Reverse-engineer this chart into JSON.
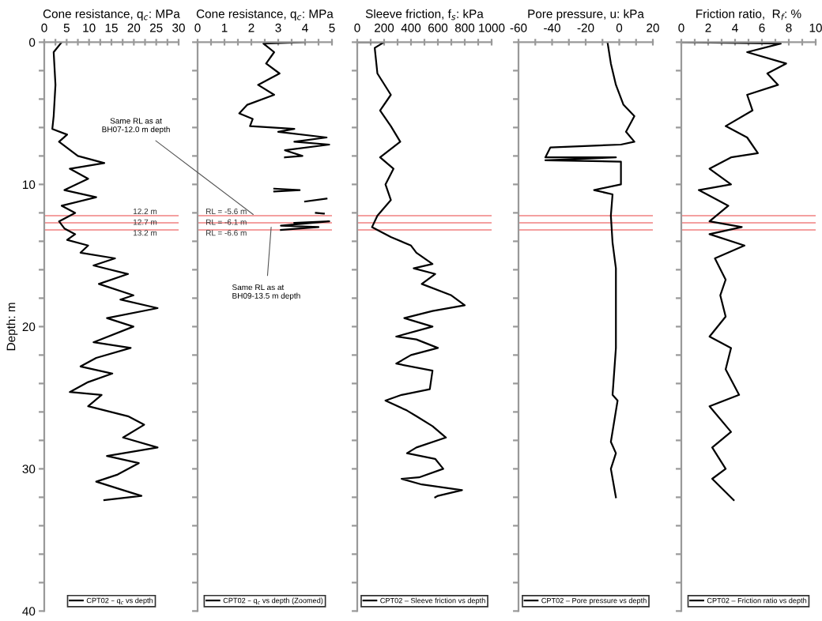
{
  "chart_data": [
    {
      "type": "line",
      "title": "Cone resistance, q$_{c}$: MPa",
      "ylabel": "Depth: m",
      "xlim": [
        0,
        30
      ],
      "xticks": [
        0,
        {
          "value": 2.5,
          "label": null
        },
        5,
        {
          "value": 7.5,
          "label": null
        },
        10,
        {
          "value": 12.5,
          "label": null
        },
        15,
        {
          "value": 17.5,
          "label": null
        },
        20,
        {
          "value": 22.5,
          "label": null
        },
        25,
        {
          "value": 27.5,
          "label": null
        },
        30
      ],
      "ylim": [
        40,
        0
      ],
      "yticks": [
        0,
        {
          "value": 2,
          "label": null
        },
        {
          "value": 4,
          "label": null
        },
        {
          "value": 6,
          "label": null
        },
        {
          "value": 8,
          "label": null
        },
        10,
        {
          "value": 12,
          "label": null
        },
        {
          "value": 14,
          "label": null
        },
        {
          "value": 16,
          "label": null
        },
        {
          "value": 18,
          "label": null
        },
        20,
        {
          "value": 22,
          "label": null
        },
        {
          "value": 24,
          "label": null
        },
        {
          "value": 26,
          "label": null
        },
        {
          "value": 28,
          "label": null
        },
        30,
        {
          "value": 32,
          "label": null
        },
        {
          "value": 34,
          "label": null
        },
        {
          "value": 36,
          "label": null
        },
        {
          "value": 38,
          "label": null
        },
        40
      ],
      "legend": "bottom",
      "ref_lines": [
        {
          "axis": "y",
          "value": 12.2,
          "label": "12.2 m",
          "color": "#f08080"
        },
        {
          "axis": "y",
          "value": 12.7,
          "label": "12.7 m",
          "color": "#f08080"
        },
        {
          "axis": "y",
          "value": 13.2,
          "label": "13.2 m",
          "color": "#f08080"
        }
      ],
      "series": [
        {
          "name": "CPT02 – q$_{c}$ vs depth",
          "color": "#000000",
          "x": [
            3.9,
            2.1,
            2.5,
            2.1,
            1.8,
            5.1,
            3.3,
            7.5,
            13.4,
            5.7,
            9.8,
            4.5,
            11.6,
            3.9,
            6.9,
            3.3,
            4.5,
            6.9,
            5.1,
            9.8,
            8.1,
            15.8,
            11,
            18.7,
            12.2,
            19.9,
            17,
            25.3,
            14,
            19.9,
            11,
            19.3,
            11.6,
            8.1,
            15.2,
            9.8,
            5.7,
            12.8,
            9.8,
            18.7,
            22.3,
            17.6,
            25.3,
            14,
            21.1,
            16.4,
            11.6,
            17.6,
            21.7,
            13.4
          ],
          "values": [
            0,
            0.7,
            3,
            5.2,
            6.1,
            6.5,
            7,
            8,
            8.5,
            8.9,
            9.6,
            10.4,
            10.9,
            11.5,
            12,
            12.6,
            13.1,
            13.5,
            13.9,
            14.3,
            14.8,
            15.2,
            15.7,
            16.3,
            17,
            17.8,
            18.1,
            18.7,
            19.4,
            20,
            21.1,
            21.5,
            22.2,
            22.8,
            23.3,
            23.9,
            24.6,
            24.8,
            25.6,
            26.3,
            26.9,
            27.8,
            28.5,
            29.1,
            29.6,
            30.4,
            30.9,
            31.5,
            31.9,
            32.2
          ]
        }
      ]
    },
    {
      "type": "line",
      "title": "Cone resistance, q$_{c}$: MPa",
      "xlim": [
        0,
        5
      ],
      "xticks": [
        0,
        {
          "value": 0.5,
          "label": null
        },
        1,
        {
          "value": 1.5,
          "label": null
        },
        2,
        {
          "value": 2.5,
          "label": null
        },
        3,
        {
          "value": 3.5,
          "label": null
        },
        4,
        {
          "value": 4.5,
          "label": null
        },
        5
      ],
      "ylim": [
        40,
        0
      ],
      "yticks": [
        0,
        2,
        4,
        6,
        8,
        10,
        12,
        14,
        16,
        18,
        20,
        22,
        24,
        26,
        28,
        30,
        32,
        34,
        36,
        38,
        40
      ],
      "tick_labels": "x",
      "legend": "bottom",
      "ref_lines": [
        {
          "axis": "y",
          "value": 12.2,
          "color": "#f08080"
        },
        {
          "axis": "y",
          "value": 12.7,
          "color": "#f08080"
        },
        {
          "axis": "y",
          "value": 13.2,
          "color": "#f08080"
        }
      ],
      "annotations": [
        {
          "text": "Same RL as at\nBH07-12.0 m depth",
          "x": 2.2,
          "y": 12.3
        },
        {
          "text": "Same RL as at\nBH09-13.5 m depth",
          "x": 2.75,
          "y": 12.7
        },
        {
          "text": "RL = -5.6 m",
          "x": 0.3,
          "y": 12.2
        },
        {
          "text": "RL = -6.1 m",
          "x": 0.3,
          "y": 12.7
        },
        {
          "text": "RL = -6.6 m",
          "x": 0.3,
          "y": 13.2
        }
      ],
      "series": [
        {
          "name": "CPT02 – q$_{c}$ vs depth (Zoomed)",
          "color": "#000000",
          "x": [
            4.0,
            2.45,
            2.85,
            2.55,
            3.05,
            2.25,
            2.85,
            1.85,
            1.55,
            2.05,
            1.95,
            3.6,
            3.0,
            4.8,
            3.6,
            4.9,
            3.25,
            3.9,
            3.25,
            null,
            2.85,
            3.8,
            2.85,
            null,
            4.0,
            4.8,
            null,
            4.4,
            4.7,
            null,
            3.6,
            4.9,
            3.1,
            4.5,
            3.1
          ],
          "values": [
            0,
            0.1,
            0.7,
            1.5,
            2.2,
            3,
            3.7,
            4.4,
            5,
            5.4,
            5.9,
            6.1,
            6.3,
            6.7,
            7,
            7.2,
            7.6,
            8,
            8.1,
            null,
            10.3,
            10.4,
            10.5,
            null,
            11.2,
            11.0,
            null,
            12.0,
            12.05,
            null,
            12.7,
            12.6,
            12.9,
            13.0,
            13.2
          ]
        }
      ]
    },
    {
      "type": "line",
      "title": "Sleeve friction, f$_{s}$: kPa",
      "xlim": [
        0,
        1000
      ],
      "xticks": [
        0,
        {
          "value": 100,
          "label": null
        },
        200,
        {
          "value": 300,
          "label": null
        },
        400,
        {
          "value": 500,
          "label": null
        },
        600,
        {
          "value": 700,
          "label": null
        },
        800,
        {
          "value": 900,
          "label": null
        },
        1000
      ],
      "ylim": [
        40,
        0
      ],
      "yticks": [
        0,
        2,
        4,
        6,
        8,
        10,
        12,
        14,
        16,
        18,
        20,
        22,
        24,
        26,
        28,
        30,
        32,
        34,
        36,
        38,
        40
      ],
      "tick_labels": "x",
      "legend": "bottom",
      "ref_lines": [
        {
          "axis": "y",
          "value": 12.2,
          "color": "#f08080"
        },
        {
          "axis": "y",
          "value": 12.7,
          "color": "#f08080"
        },
        {
          "axis": "y",
          "value": 13.2,
          "color": "#f08080"
        }
      ],
      "series": [
        {
          "name": "CPT02 – Sleeve friction vs depth",
          "color": "#000000",
          "x": [
            0,
            200,
            130,
            150,
            250,
            170,
            250,
            320,
            170,
            270,
            210,
            250,
            150,
            110,
            250,
            400,
            440,
            560,
            420,
            580,
            480,
            700,
            800,
            560,
            350,
            560,
            290,
            440,
            600,
            400,
            290,
            560,
            540,
            330,
            210,
            370,
            440,
            560,
            660,
            440,
            370,
            580,
            640,
            460,
            330,
            480,
            780,
            600,
            580
          ],
          "values": [
            0,
            0,
            0.4,
            2.2,
            3.7,
            4.8,
            5.9,
            7,
            8.1,
            8.9,
            10,
            11.1,
            12.2,
            13,
            13.7,
            14.3,
            14.8,
            15.6,
            15.9,
            16.3,
            17,
            17.8,
            18.5,
            18.9,
            19.4,
            20,
            20.7,
            20.9,
            21.5,
            22,
            22.6,
            23.1,
            24.4,
            24.8,
            25.2,
            25.9,
            26.3,
            27,
            27.8,
            28.5,
            28.9,
            29.3,
            30,
            30.6,
            30.7,
            31.1,
            31.5,
            31.9,
            32
          ]
        }
      ]
    },
    {
      "type": "line",
      "title": "Pore pressure, u: kPa",
      "xlim": [
        -60,
        20
      ],
      "xticks": [
        -60,
        {
          "value": -50,
          "label": null
        },
        -40,
        {
          "value": -30,
          "label": null
        },
        -20,
        {
          "value": -10,
          "label": null
        },
        0,
        {
          "value": 10,
          "label": null
        },
        20
      ],
      "ylim": [
        40,
        0
      ],
      "yticks": [
        0,
        2,
        4,
        6,
        8,
        10,
        12,
        14,
        16,
        18,
        20,
        22,
        24,
        26,
        28,
        30,
        32,
        34,
        36,
        38,
        40
      ],
      "tick_labels": "x",
      "legend": "bottom",
      "ref_lines": [
        {
          "axis": "y",
          "value": 12.2,
          "color": "#f08080"
        },
        {
          "axis": "y",
          "value": 12.7,
          "color": "#f08080"
        },
        {
          "axis": "y",
          "value": 13.2,
          "color": "#f08080"
        }
      ],
      "series": [
        {
          "name": "CPT02 – Pore pressure vs depth",
          "color": "#000000",
          "x": [
            -7,
            -5,
            -2,
            2.5,
            9,
            4,
            9,
            1,
            -41,
            -44,
            -2,
            -44,
            1,
            1,
            -15,
            -4,
            -5,
            -4,
            -2,
            -2,
            -4,
            -1,
            -5,
            -2,
            -5,
            -2
          ],
          "values": [
            0,
            1.5,
            3,
            4.4,
            5.2,
            6.3,
            7,
            7.2,
            7.4,
            8.1,
            8.1,
            8.3,
            8.4,
            10,
            10.4,
            10.7,
            12.2,
            14.1,
            15.9,
            21.5,
            24.8,
            25.2,
            28.1,
            28.9,
            30,
            32
          ]
        }
      ]
    },
    {
      "type": "line",
      "title": "Friction ratio,  R$_{f}$: %",
      "xlim": [
        0,
        10
      ],
      "xticks": [
        0,
        {
          "value": 1,
          "label": null
        },
        2,
        {
          "value": 3,
          "label": null
        },
        4,
        {
          "value": 5,
          "label": null
        },
        6,
        {
          "value": 7,
          "label": null
        },
        8,
        {
          "value": 9,
          "label": null
        },
        10
      ],
      "ylim": [
        40,
        0
      ],
      "yticks": [
        0,
        2,
        4,
        6,
        8,
        10,
        12,
        14,
        16,
        18,
        20,
        22,
        24,
        26,
        28,
        30,
        32,
        34,
        36,
        38,
        40
      ],
      "tick_labels": "x",
      "legend": "bottom",
      "ref_lines": [
        {
          "axis": "y",
          "value": 12.2,
          "color": "#f08080"
        },
        {
          "axis": "y",
          "value": 12.7,
          "color": "#f08080"
        },
        {
          "axis": "y",
          "value": 13.2,
          "color": "#f08080"
        }
      ],
      "series": [
        {
          "name": "CPT02 – Friction ratio vs depth",
          "color": "#000000",
          "x": [
            0,
            7.4,
            4.9,
            7.8,
            6.4,
            7.2,
            4.9,
            5.3,
            3.3,
            4.9,
            5.7,
            3.7,
            2.1,
            3.7,
            1.3,
            3.5,
            2.1,
            4.5,
            2.1,
            4.7,
            2.5,
            3.3,
            2.9,
            3.3,
            2.1,
            3.7,
            3.3,
            4.3,
            2.1,
            3.7,
            2.3,
            3.3,
            2.3,
            3.9
          ],
          "values": [
            0,
            0.1,
            0.7,
            1.5,
            2.2,
            3,
            3.7,
            4.8,
            5.9,
            6.7,
            7.8,
            8.1,
            8.9,
            10,
            10.4,
            11.5,
            12.6,
            13,
            13.5,
            14.3,
            15.2,
            16.7,
            17.8,
            19.3,
            20.7,
            21.5,
            23,
            24.8,
            25.6,
            27.4,
            28.5,
            30,
            30.7,
            32.2
          ]
        }
      ]
    }
  ]
}
